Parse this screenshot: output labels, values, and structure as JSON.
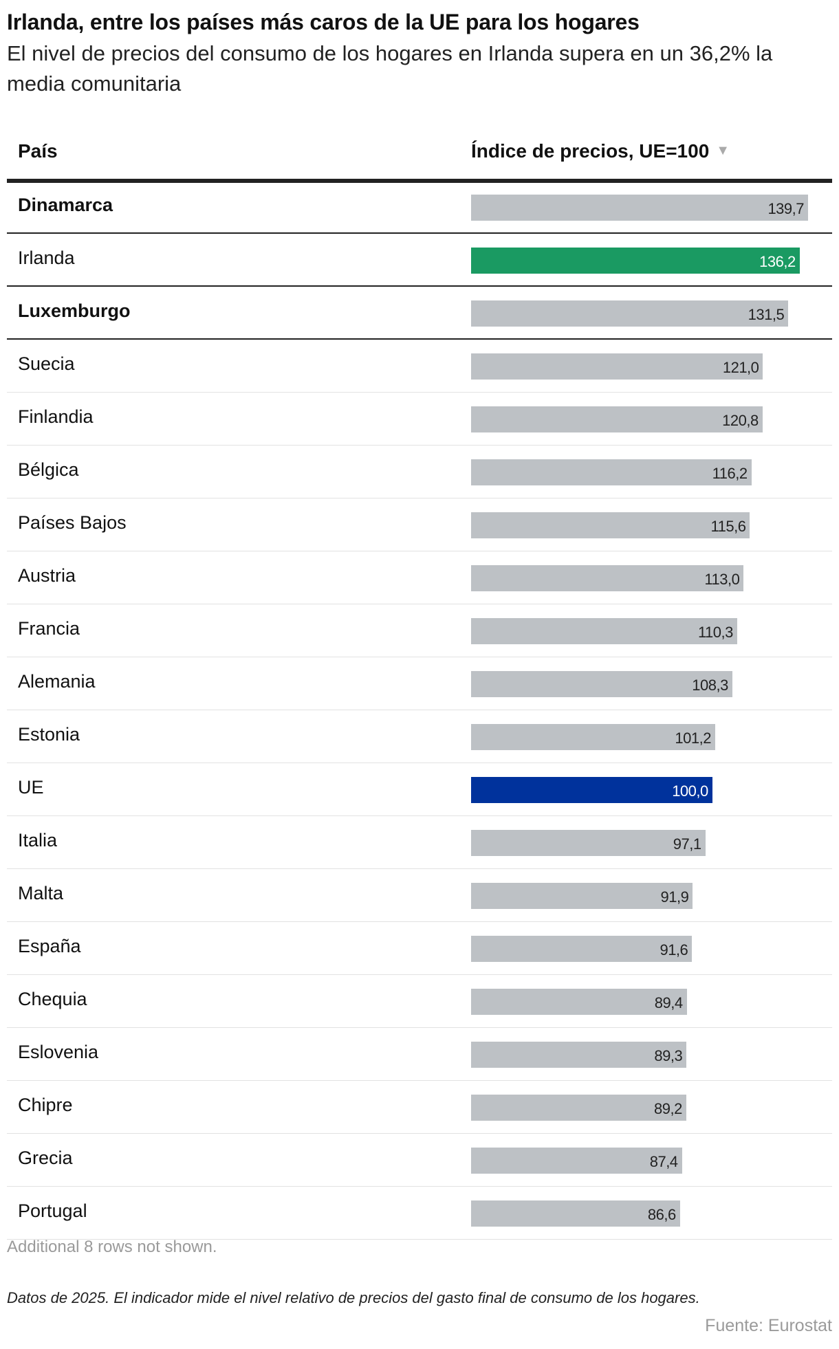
{
  "title": "Irlanda, entre los países más caros de la UE para los hogares",
  "subtitle": "El nivel de precios del consumo de los hogares en Irlanda supera en un 36,2% la media comunitaria",
  "columns": {
    "country": "País",
    "index": "Índice de precios, UE=100"
  },
  "sort_icon": "triangle-down-icon",
  "colors": {
    "default": "#bdc1c5",
    "ireland": "#1a9a62",
    "eu": "#00329c"
  },
  "chart_data": {
    "type": "bar",
    "orientation": "horizontal",
    "xlim": [
      0,
      139.7
    ],
    "categories": [
      "Dinamarca",
      "Irlanda",
      "Luxemburgo",
      "Suecia",
      "Finlandia",
      "Bélgica",
      "Países Bajos",
      "Austria",
      "Francia",
      "Alemania",
      "Estonia",
      "UE",
      "Italia",
      "Malta",
      "España",
      "Chequia",
      "Eslovenia",
      "Chipre",
      "Grecia",
      "Portugal"
    ],
    "values": [
      139.7,
      136.2,
      131.5,
      121.0,
      120.8,
      116.2,
      115.6,
      113.0,
      110.3,
      108.3,
      101.2,
      100.0,
      97.1,
      91.9,
      91.6,
      89.4,
      89.3,
      89.2,
      87.4,
      86.6
    ],
    "labels": [
      "139,7",
      "136,2",
      "131,5",
      "121,0",
      "120,8",
      "116,2",
      "115,6",
      "113,0",
      "110,3",
      "108,3",
      "101,2",
      "100,0",
      "97,1",
      "91,9",
      "91,6",
      "89,4",
      "89,3",
      "89,2",
      "87,4",
      "86,6"
    ],
    "bold": [
      "Dinamarca",
      "Luxemburgo"
    ],
    "highlight": {
      "Irlanda": "#1a9a62",
      "UE": "#00329c"
    }
  },
  "rows_not_shown": "Additional 8 rows not shown.",
  "note": "Datos de 2025. El indicador mide el nivel relativo de precios del gasto final de consumo de los hogares.",
  "source": "Fuente: Eurostat"
}
